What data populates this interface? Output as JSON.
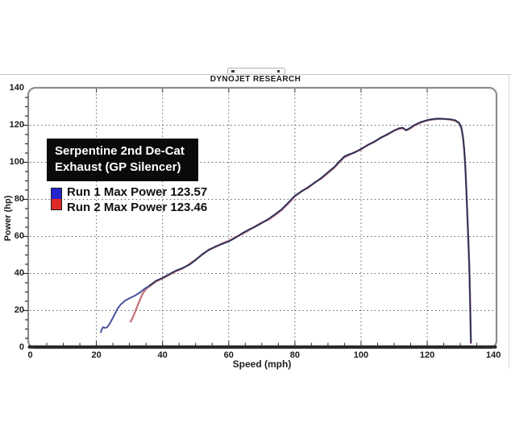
{
  "header": {
    "app_title": "DYNOJET RESEARCH"
  },
  "annotation": {
    "line1": "Serpentine 2nd De-Cat",
    "line2": "Exhaust (GP Silencer)"
  },
  "legend": {
    "run1_label": "Run 1 Max Power 123.57",
    "run2_label": "Run 2 Max Power 123.46",
    "run1_color": "#2424cc",
    "run2_color": "#e02828"
  },
  "chart_data": {
    "type": "line",
    "title": "DYNOJET RESEARCH",
    "xlabel": "Speed (mph)",
    "ylabel": "Power (hp)",
    "xlim": [
      0,
      140
    ],
    "ylim": [
      0,
      140
    ],
    "x_ticks": [
      0,
      20,
      40,
      60,
      80,
      100,
      120,
      140
    ],
    "y_ticks": [
      0,
      20,
      40,
      60,
      80,
      100,
      120,
      140
    ],
    "grid": "dotted major gridlines on",
    "legend_position": "upper-left inside plot",
    "annotation": "Serpentine 2nd De-Cat Exhaust (GP Silencer)",
    "series": [
      {
        "name": "Run 1",
        "max_power": 123.57,
        "color": "#4a549c",
        "points": [
          [
            21.3,
            8.0
          ],
          [
            21.6,
            9.8
          ],
          [
            22.0,
            11.0
          ],
          [
            22.6,
            10.6
          ],
          [
            23.2,
            10.9
          ],
          [
            24.0,
            12.8
          ],
          [
            24.8,
            15.5
          ],
          [
            25.6,
            18.2
          ],
          [
            26.4,
            21.0
          ],
          [
            27.4,
            23.4
          ],
          [
            28.6,
            25.2
          ],
          [
            30.0,
            26.6
          ],
          [
            31.6,
            28.0
          ],
          [
            33.2,
            29.8
          ],
          [
            34.6,
            31.8
          ],
          [
            36.0,
            33.4
          ],
          [
            38.0,
            36.0
          ],
          [
            40.0,
            37.6
          ],
          [
            42.0,
            39.6
          ],
          [
            44.0,
            41.5
          ],
          [
            46.0,
            42.9
          ],
          [
            48.0,
            44.6
          ],
          [
            50.0,
            47.2
          ],
          [
            52.0,
            50.4
          ],
          [
            54.0,
            52.6
          ],
          [
            56.0,
            54.6
          ],
          [
            58.0,
            55.9
          ],
          [
            60.0,
            57.3
          ],
          [
            62.0,
            59.2
          ],
          [
            64.0,
            61.6
          ],
          [
            66.0,
            63.6
          ],
          [
            68.0,
            65.2
          ],
          [
            70.0,
            67.2
          ],
          [
            72.0,
            69.4
          ],
          [
            74.0,
            71.9
          ],
          [
            76.0,
            74.6
          ],
          [
            78.0,
            78.2
          ],
          [
            80.0,
            82.0
          ],
          [
            82.0,
            84.2
          ],
          [
            84.0,
            86.6
          ],
          [
            86.0,
            88.9
          ],
          [
            88.0,
            91.6
          ],
          [
            90.0,
            94.6
          ],
          [
            92.0,
            97.6
          ],
          [
            93.5,
            100.6
          ],
          [
            95.0,
            103.2
          ],
          [
            96.5,
            104.4
          ],
          [
            98.0,
            105.2
          ],
          [
            100.0,
            107.2
          ],
          [
            102.0,
            109.2
          ],
          [
            104.0,
            111.2
          ],
          [
            106.0,
            113.2
          ],
          [
            108.0,
            115.2
          ],
          [
            110.0,
            117.0
          ],
          [
            111.5,
            118.4
          ],
          [
            112.6,
            118.7
          ],
          [
            113.6,
            117.2
          ],
          [
            114.6,
            118.3
          ],
          [
            116.0,
            120.0
          ],
          [
            118.0,
            121.7
          ],
          [
            120.0,
            122.8
          ],
          [
            121.5,
            123.3
          ],
          [
            123.0,
            123.57
          ],
          [
            125.0,
            123.5
          ],
          [
            127.0,
            123.2
          ],
          [
            128.5,
            122.7
          ],
          [
            129.6,
            121.4
          ],
          [
            130.3,
            119.0
          ],
          [
            130.8,
            114.0
          ],
          [
            131.2,
            107.0
          ],
          [
            131.5,
            98.0
          ],
          [
            131.8,
            86.0
          ],
          [
            132.1,
            73.0
          ],
          [
            132.4,
            59.0
          ],
          [
            132.7,
            44.0
          ],
          [
            132.9,
            28.0
          ],
          [
            133.1,
            12.0
          ],
          [
            133.2,
            2.5
          ]
        ]
      },
      {
        "name": "Run 2",
        "max_power": 123.46,
        "color": "#c5797e",
        "points": [
          [
            30.2,
            13.6
          ],
          [
            30.9,
            15.8
          ],
          [
            31.6,
            18.8
          ],
          [
            32.4,
            22.4
          ],
          [
            33.2,
            26.0
          ],
          [
            34.0,
            29.2
          ],
          [
            35.0,
            31.6
          ],
          [
            36.2,
            33.2
          ],
          [
            38.0,
            35.7
          ],
          [
            40.0,
            37.3
          ],
          [
            42.0,
            39.2
          ],
          [
            44.0,
            41.2
          ],
          [
            46.0,
            42.6
          ],
          [
            48.0,
            44.9
          ],
          [
            50.0,
            47.5
          ],
          [
            52.0,
            50.1
          ],
          [
            54.0,
            52.9
          ],
          [
            56.0,
            54.3
          ],
          [
            58.0,
            56.2
          ],
          [
            60.0,
            57.6
          ],
          [
            62.0,
            59.5
          ],
          [
            64.0,
            61.2
          ],
          [
            66.0,
            63.2
          ],
          [
            68.0,
            65.5
          ],
          [
            70.0,
            67.5
          ],
          [
            72.0,
            69.0
          ],
          [
            74.0,
            71.5
          ],
          [
            76.0,
            74.2
          ],
          [
            78.0,
            77.8
          ],
          [
            80.0,
            81.6
          ],
          [
            82.0,
            84.5
          ],
          [
            84.0,
            86.2
          ],
          [
            86.0,
            89.2
          ],
          [
            88.0,
            91.2
          ],
          [
            90.0,
            94.2
          ],
          [
            92.0,
            97.2
          ],
          [
            93.5,
            100.2
          ],
          [
            95.0,
            102.8
          ],
          [
            96.5,
            104.0
          ],
          [
            98.0,
            105.5
          ],
          [
            100.0,
            106.9
          ],
          [
            102.0,
            109.5
          ],
          [
            104.0,
            110.9
          ],
          [
            106.0,
            113.5
          ],
          [
            108.0,
            114.9
          ],
          [
            110.0,
            117.3
          ],
          [
            111.5,
            118.1
          ],
          [
            112.6,
            118.4
          ],
          [
            113.6,
            117.5
          ],
          [
            114.6,
            118.0
          ],
          [
            116.0,
            119.7
          ],
          [
            118.0,
            121.4
          ],
          [
            120.0,
            122.6
          ],
          [
            121.5,
            123.1
          ],
          [
            123.5,
            123.46
          ],
          [
            125.0,
            123.4
          ],
          [
            127.0,
            123.0
          ],
          [
            128.5,
            122.4
          ],
          [
            129.7,
            121.0
          ],
          [
            130.4,
            118.0
          ],
          [
            130.9,
            112.0
          ],
          [
            131.3,
            104.0
          ],
          [
            131.6,
            94.0
          ],
          [
            131.9,
            82.0
          ],
          [
            132.2,
            69.0
          ],
          [
            132.5,
            55.0
          ],
          [
            132.8,
            40.0
          ],
          [
            133.0,
            24.0
          ],
          [
            133.15,
            9.0
          ],
          [
            133.25,
            2.0
          ]
        ]
      }
    ]
  }
}
